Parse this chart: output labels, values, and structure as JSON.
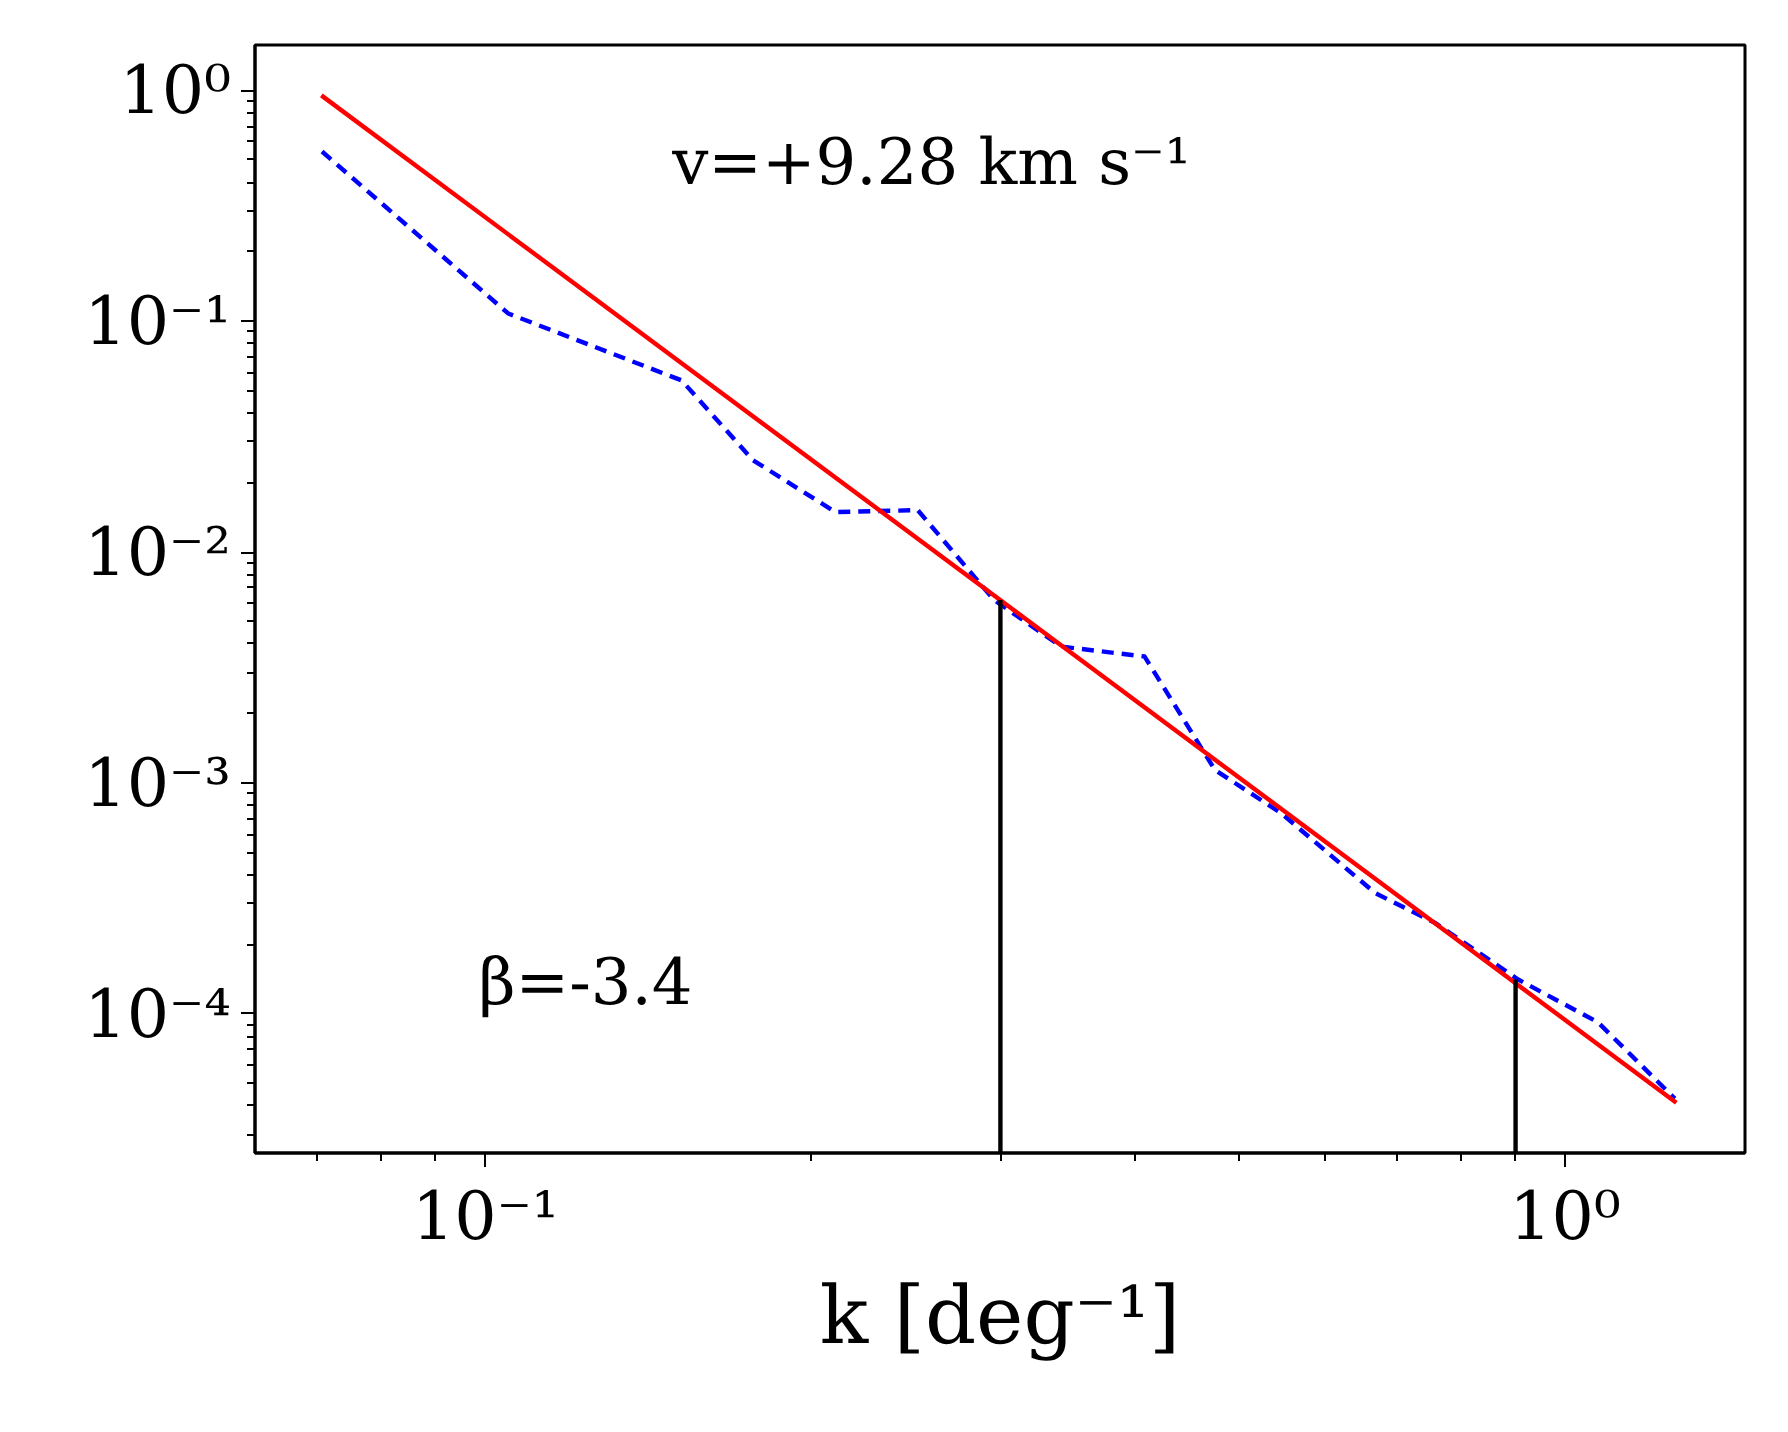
{
  "chart_data": {
    "type": "line",
    "xlabel": "k [deg⁻¹]",
    "log": "xy",
    "grid": false,
    "line_style": "solid",
    "marker": "none",
    "xlim": [
      0.0612,
      1.468
    ],
    "ylim": [
      2.5e-05,
      1.57
    ],
    "xticks": [
      {
        "value": 0.1,
        "label": "10⁻¹"
      },
      {
        "value": 1,
        "label": "10⁰"
      }
    ],
    "yticks": [
      {
        "value": 0.0001,
        "label": "10⁻⁴"
      },
      {
        "value": 0.001,
        "label": "10⁻³"
      },
      {
        "value": 0.01,
        "label": "10⁻²"
      },
      {
        "value": 0.1,
        "label": "10⁻¹"
      },
      {
        "value": 1,
        "label": "10⁰"
      }
    ],
    "annotations": [
      "v=+9.28 km s⁻¹",
      "β=-3.4"
    ],
    "series": [
      {
        "color": "#0000ff",
        "line_style": "dashed",
        "x": [
          0.0706,
          0.105,
          0.152,
          0.177,
          0.211,
          0.2515,
          0.296,
          0.3415,
          0.408,
          0.474,
          0.546,
          0.667,
          0.758,
          0.905,
          1.073,
          1.264
        ],
        "values": [
          0.543,
          0.108,
          0.0554,
          0.025,
          0.0149,
          0.0152,
          0.0062,
          0.0039,
          0.00353,
          0.00114,
          0.00074,
          0.000334,
          0.000248,
          0.000141,
          9.2e-05,
          4.3e-05
        ]
      },
      {
        "color": "#ff0000",
        "x": [
          0.0705,
          1.268
        ],
        "values": [
          0.95,
          4.13e-05
        ]
      },
      {
        "color": "#000000",
        "x": [
          0.3,
          0.3
        ],
        "values": [
          2.5e-05,
          0.0062
        ]
      },
      {
        "color": "#000000",
        "x": [
          0.9,
          0.9
        ],
        "values": [
          2.5e-05,
          0.000141
        ]
      }
    ]
  }
}
